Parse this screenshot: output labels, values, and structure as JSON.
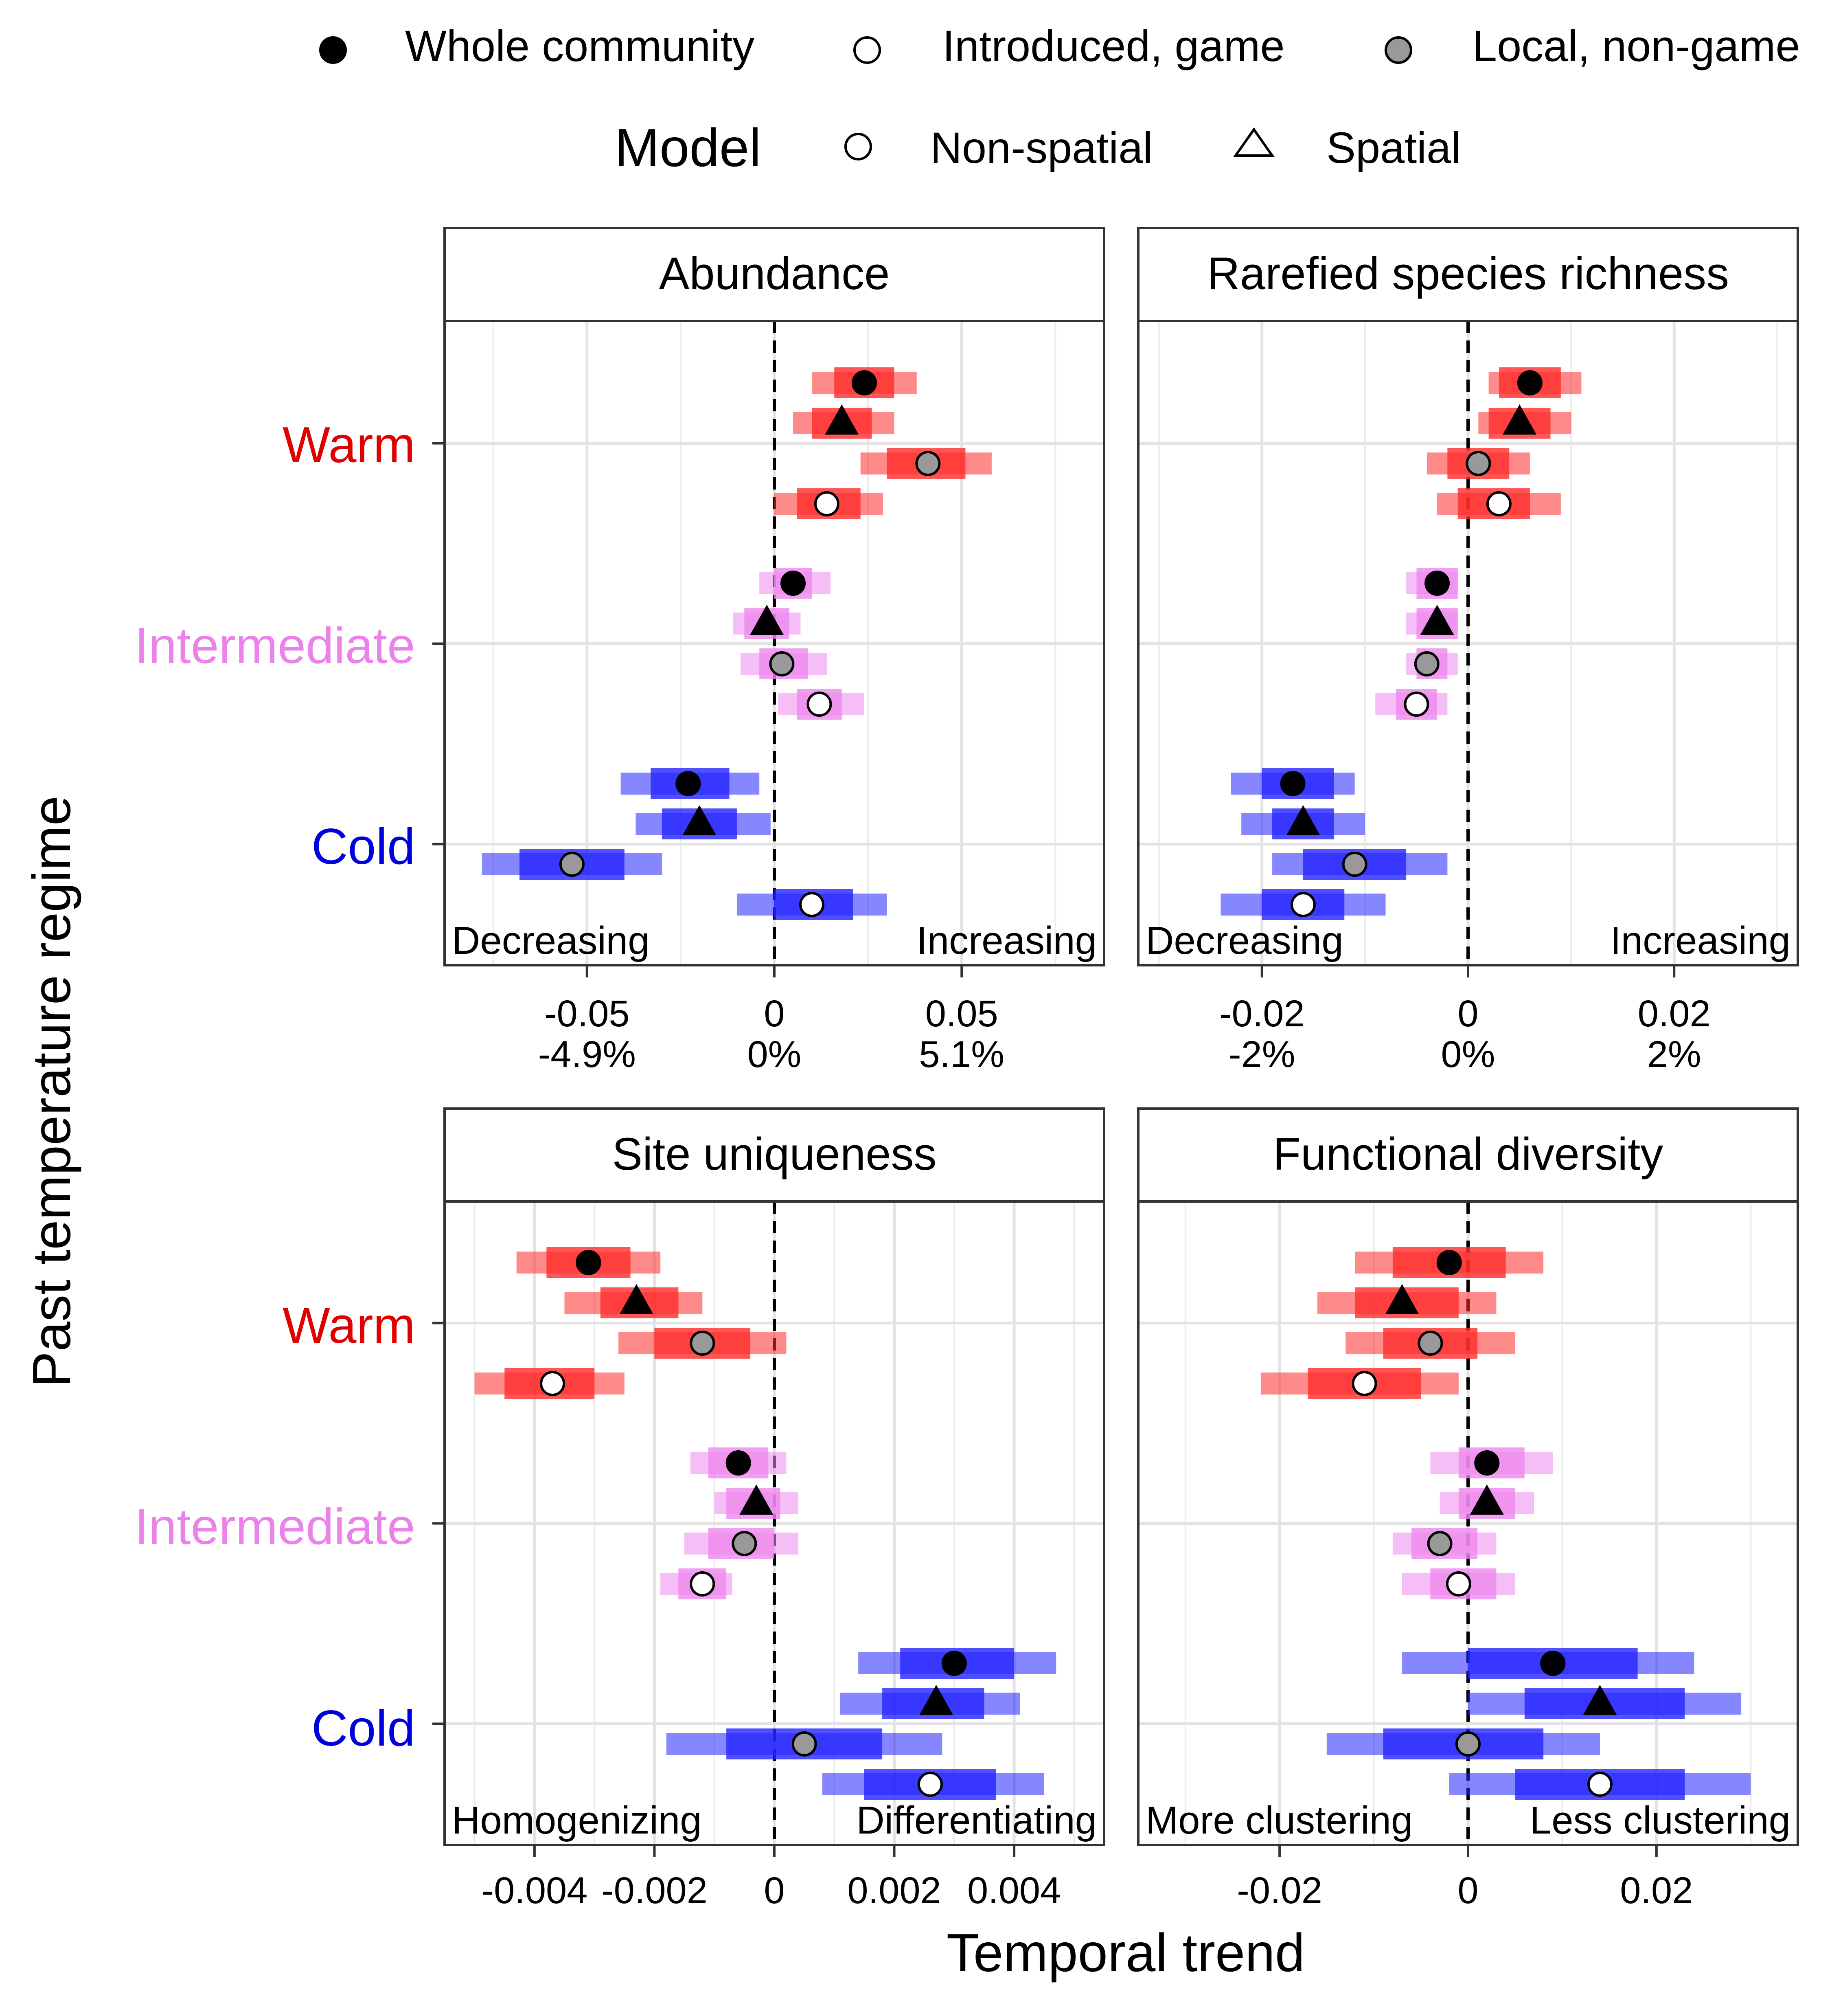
{
  "legend": {
    "group_items": [
      {
        "label": "Whole community",
        "fill": "#000000"
      },
      {
        "label": "Introduced, game",
        "fill": "#ffffff"
      },
      {
        "label": "Local, non-game",
        "fill": "#999999"
      }
    ],
    "model_title": "Model",
    "model_items": [
      {
        "label": "Non-spatial",
        "shape": "circle"
      },
      {
        "label": "Spatial",
        "shape": "triangle"
      }
    ]
  },
  "y_axis_title": "Past temperature regime",
  "x_axis_title": "Temporal trend",
  "regimes": [
    {
      "label": "Warm",
      "color": "#e00000",
      "bar_color": "#ff2a2a"
    },
    {
      "label": "Intermediate",
      "color": "#ea82ea",
      "bar_color": "#ee88ee"
    },
    {
      "label": "Cold",
      "color": "#0000dd",
      "bar_color": "#2323ff"
    }
  ],
  "chart_data": [
    {
      "type": "forest",
      "title": "Abundance",
      "xlim": [
        -0.088,
        0.088
      ],
      "ticks": [
        {
          "value": -0.05,
          "label": "-0.05",
          "sublabel": "-4.9%"
        },
        {
          "value": 0,
          "label": "0",
          "sublabel": "0%"
        },
        {
          "value": 0.05,
          "label": "0.05",
          "sublabel": "5.1%"
        }
      ],
      "minor_grid": [
        -0.075,
        -0.025,
        0.025,
        0.075
      ],
      "left_note": "Decreasing",
      "right_note": "Increasing",
      "rows": [
        {
          "regime": "Warm",
          "point": "whole-circle",
          "est": 0.024,
          "inner": [
            0.016,
            0.032
          ],
          "outer": [
            0.01,
            0.038
          ]
        },
        {
          "regime": "Warm",
          "point": "triangle",
          "est": 0.018,
          "inner": [
            0.01,
            0.026
          ],
          "outer": [
            0.005,
            0.032
          ]
        },
        {
          "regime": "Warm",
          "point": "local-circle",
          "est": 0.041,
          "inner": [
            0.03,
            0.051
          ],
          "outer": [
            0.023,
            0.058
          ]
        },
        {
          "regime": "Warm",
          "point": "introduced-circle",
          "est": 0.014,
          "inner": [
            0.006,
            0.023
          ],
          "outer": [
            0.0,
            0.029
          ]
        },
        {
          "regime": "Intermediate",
          "point": "whole-circle",
          "est": 0.005,
          "inner": [
            0.0,
            0.01
          ],
          "outer": [
            -0.004,
            0.015
          ]
        },
        {
          "regime": "Intermediate",
          "point": "triangle",
          "est": -0.002,
          "inner": [
            -0.008,
            0.004
          ],
          "outer": [
            -0.011,
            0.007
          ]
        },
        {
          "regime": "Intermediate",
          "point": "local-circle",
          "est": 0.002,
          "inner": [
            -0.004,
            0.009
          ],
          "outer": [
            -0.009,
            0.014
          ]
        },
        {
          "regime": "Intermediate",
          "point": "introduced-circle",
          "est": 0.012,
          "inner": [
            0.006,
            0.018
          ],
          "outer": [
            0.001,
            0.024
          ]
        },
        {
          "regime": "Cold",
          "point": "whole-circle",
          "est": -0.023,
          "inner": [
            -0.033,
            -0.012
          ],
          "outer": [
            -0.041,
            -0.004
          ]
        },
        {
          "regime": "Cold",
          "point": "triangle",
          "est": -0.02,
          "inner": [
            -0.03,
            -0.01
          ],
          "outer": [
            -0.037,
            -0.001
          ]
        },
        {
          "regime": "Cold",
          "point": "local-circle",
          "est": -0.054,
          "inner": [
            -0.068,
            -0.04
          ],
          "outer": [
            -0.078,
            -0.03
          ]
        },
        {
          "regime": "Cold",
          "point": "introduced-circle",
          "est": 0.01,
          "inner": [
            0.0,
            0.021
          ],
          "outer": [
            -0.01,
            0.03
          ]
        }
      ]
    },
    {
      "type": "forest",
      "title": "Rarefied species richness",
      "xlim": [
        -0.032,
        0.032
      ],
      "ticks": [
        {
          "value": -0.02,
          "label": "-0.02",
          "sublabel": "-2%"
        },
        {
          "value": 0,
          "label": "0",
          "sublabel": "0%"
        },
        {
          "value": 0.02,
          "label": "0.02",
          "sublabel": "2%"
        }
      ],
      "minor_grid": [
        -0.03,
        -0.01,
        0.01,
        0.03
      ],
      "left_note": "Decreasing",
      "right_note": "Increasing",
      "rows": [
        {
          "regime": "Warm",
          "point": "whole-circle",
          "est": 0.006,
          "inner": [
            0.003,
            0.009
          ],
          "outer": [
            0.002,
            0.011
          ]
        },
        {
          "regime": "Warm",
          "point": "triangle",
          "est": 0.005,
          "inner": [
            0.002,
            0.008
          ],
          "outer": [
            0.001,
            0.01
          ]
        },
        {
          "regime": "Warm",
          "point": "local-circle",
          "est": 0.001,
          "inner": [
            -0.002,
            0.004
          ],
          "outer": [
            -0.004,
            0.006
          ]
        },
        {
          "regime": "Warm",
          "point": "introduced-circle",
          "est": 0.003,
          "inner": [
            -0.001,
            0.006
          ],
          "outer": [
            -0.003,
            0.009
          ]
        },
        {
          "regime": "Intermediate",
          "point": "whole-circle",
          "est": -0.003,
          "inner": [
            -0.005,
            -0.001
          ],
          "outer": [
            -0.006,
            -0.001
          ]
        },
        {
          "regime": "Intermediate",
          "point": "triangle",
          "est": -0.003,
          "inner": [
            -0.005,
            -0.001
          ],
          "outer": [
            -0.006,
            -0.001
          ]
        },
        {
          "regime": "Intermediate",
          "point": "local-circle",
          "est": -0.004,
          "inner": [
            -0.005,
            -0.002
          ],
          "outer": [
            -0.006,
            -0.001
          ]
        },
        {
          "regime": "Intermediate",
          "point": "introduced-circle",
          "est": -0.005,
          "inner": [
            -0.007,
            -0.003
          ],
          "outer": [
            -0.009,
            -0.002
          ]
        },
        {
          "regime": "Cold",
          "point": "whole-circle",
          "est": -0.017,
          "inner": [
            -0.02,
            -0.013
          ],
          "outer": [
            -0.023,
            -0.011
          ]
        },
        {
          "regime": "Cold",
          "point": "triangle",
          "est": -0.016,
          "inner": [
            -0.019,
            -0.013
          ],
          "outer": [
            -0.022,
            -0.01
          ]
        },
        {
          "regime": "Cold",
          "point": "local-circle",
          "est": -0.011,
          "inner": [
            -0.016,
            -0.006
          ],
          "outer": [
            -0.019,
            -0.002
          ]
        },
        {
          "regime": "Cold",
          "point": "introduced-circle",
          "est": -0.016,
          "inner": [
            -0.02,
            -0.012
          ],
          "outer": [
            -0.024,
            -0.008
          ]
        }
      ]
    },
    {
      "type": "forest",
      "title": "Site uniqueness",
      "xlim": [
        -0.0055,
        0.0055
      ],
      "ticks": [
        {
          "value": -0.004,
          "label": "-0.004",
          "sublabel": ""
        },
        {
          "value": -0.002,
          "label": "-0.002",
          "sublabel": ""
        },
        {
          "value": 0,
          "label": "0",
          "sublabel": ""
        },
        {
          "value": 0.002,
          "label": "0.002",
          "sublabel": ""
        },
        {
          "value": 0.004,
          "label": "0.004",
          "sublabel": ""
        }
      ],
      "minor_grid": [
        -0.005,
        -0.003,
        -0.001,
        0.001,
        0.003,
        0.005
      ],
      "left_note": "Homogenizing",
      "right_note": "Differentiating",
      "rows": [
        {
          "regime": "Warm",
          "point": "whole-circle",
          "est": -0.0031,
          "inner": [
            -0.0038,
            -0.0024
          ],
          "outer": [
            -0.0043,
            -0.0019
          ]
        },
        {
          "regime": "Warm",
          "point": "triangle",
          "est": -0.0023,
          "inner": [
            -0.0029,
            -0.0016
          ],
          "outer": [
            -0.0035,
            -0.0012
          ]
        },
        {
          "regime": "Warm",
          "point": "local-circle",
          "est": -0.0012,
          "inner": [
            -0.002,
            -0.0004
          ],
          "outer": [
            -0.0026,
            0.0002
          ]
        },
        {
          "regime": "Warm",
          "point": "introduced-circle",
          "est": -0.0037,
          "inner": [
            -0.0045,
            -0.003
          ],
          "outer": [
            -0.005,
            -0.0025
          ]
        },
        {
          "regime": "Intermediate",
          "point": "whole-circle",
          "est": -0.0006,
          "inner": [
            -0.0011,
            -0.0001
          ],
          "outer": [
            -0.0014,
            0.0002
          ]
        },
        {
          "regime": "Intermediate",
          "point": "triangle",
          "est": -0.0003,
          "inner": [
            -0.0008,
            0.0001
          ],
          "outer": [
            -0.001,
            0.0004
          ]
        },
        {
          "regime": "Intermediate",
          "point": "local-circle",
          "est": -0.0005,
          "inner": [
            -0.0011,
            0.0
          ],
          "outer": [
            -0.0015,
            0.0004
          ]
        },
        {
          "regime": "Intermediate",
          "point": "introduced-circle",
          "est": -0.0012,
          "inner": [
            -0.0016,
            -0.0008
          ],
          "outer": [
            -0.0019,
            -0.0007
          ]
        },
        {
          "regime": "Cold",
          "point": "whole-circle",
          "est": 0.003,
          "inner": [
            0.0021,
            0.004
          ],
          "outer": [
            0.0014,
            0.0047
          ]
        },
        {
          "regime": "Cold",
          "point": "triangle",
          "est": 0.0027,
          "inner": [
            0.0018,
            0.0035
          ],
          "outer": [
            0.0011,
            0.0041
          ]
        },
        {
          "regime": "Cold",
          "point": "local-circle",
          "est": 0.0005,
          "inner": [
            -0.0008,
            0.0018
          ],
          "outer": [
            -0.0018,
            0.0028
          ]
        },
        {
          "regime": "Cold",
          "point": "introduced-circle",
          "est": 0.0026,
          "inner": [
            0.0015,
            0.0037
          ],
          "outer": [
            0.0008,
            0.0045
          ]
        }
      ]
    },
    {
      "type": "forest",
      "title": "Functional diversity",
      "xlim": [
        -0.035,
        0.035
      ],
      "ticks": [
        {
          "value": -0.02,
          "label": "-0.02",
          "sublabel": ""
        },
        {
          "value": 0,
          "label": "0",
          "sublabel": ""
        },
        {
          "value": 0.02,
          "label": "0.02",
          "sublabel": ""
        }
      ],
      "minor_grid": [
        -0.03,
        -0.01,
        0.01,
        0.03
      ],
      "left_note": "More clustering",
      "right_note": "Less clustering",
      "rows": [
        {
          "regime": "Warm",
          "point": "whole-circle",
          "est": -0.002,
          "inner": [
            -0.008,
            0.004
          ],
          "outer": [
            -0.012,
            0.008
          ]
        },
        {
          "regime": "Warm",
          "point": "triangle",
          "est": -0.007,
          "inner": [
            -0.012,
            -0.001
          ],
          "outer": [
            -0.016,
            0.003
          ]
        },
        {
          "regime": "Warm",
          "point": "local-circle",
          "est": -0.004,
          "inner": [
            -0.009,
            0.001
          ],
          "outer": [
            -0.013,
            0.005
          ]
        },
        {
          "regime": "Warm",
          "point": "introduced-circle",
          "est": -0.011,
          "inner": [
            -0.017,
            -0.005
          ],
          "outer": [
            -0.022,
            -0.001
          ]
        },
        {
          "regime": "Intermediate",
          "point": "whole-circle",
          "est": 0.002,
          "inner": [
            -0.001,
            0.006
          ],
          "outer": [
            -0.004,
            0.009
          ]
        },
        {
          "regime": "Intermediate",
          "point": "triangle",
          "est": 0.002,
          "inner": [
            -0.001,
            0.005
          ],
          "outer": [
            -0.003,
            0.007
          ]
        },
        {
          "regime": "Intermediate",
          "point": "local-circle",
          "est": -0.003,
          "inner": [
            -0.006,
            0.001
          ],
          "outer": [
            -0.008,
            0.003
          ]
        },
        {
          "regime": "Intermediate",
          "point": "introduced-circle",
          "est": -0.001,
          "inner": [
            -0.004,
            0.003
          ],
          "outer": [
            -0.007,
            0.005
          ]
        },
        {
          "regime": "Cold",
          "point": "whole-circle",
          "est": 0.009,
          "inner": [
            0.0,
            0.018
          ],
          "outer": [
            -0.007,
            0.024
          ]
        },
        {
          "regime": "Cold",
          "point": "triangle",
          "est": 0.014,
          "inner": [
            0.006,
            0.023
          ],
          "outer": [
            0.0,
            0.029
          ]
        },
        {
          "regime": "Cold",
          "point": "local-circle",
          "est": 0.0,
          "inner": [
            -0.009,
            0.008
          ],
          "outer": [
            -0.015,
            0.014
          ]
        },
        {
          "regime": "Cold",
          "point": "introduced-circle",
          "est": 0.014,
          "inner": [
            0.005,
            0.023
          ],
          "outer": [
            -0.002,
            0.03
          ]
        }
      ]
    }
  ]
}
